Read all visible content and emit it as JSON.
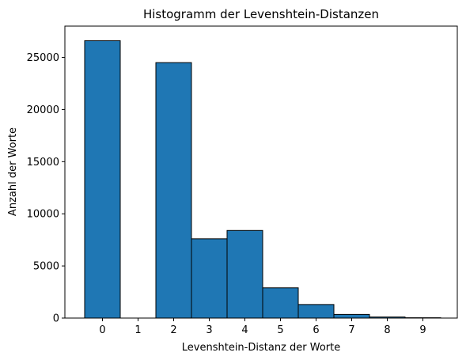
{
  "chart_data": {
    "type": "bar",
    "title": "Histogramm der Levenshtein-Distanzen",
    "xlabel": "Levenshtein-Distanz der Worte",
    "ylabel": "Anzahl der Worte",
    "categories": [
      "0",
      "1",
      "2",
      "3",
      "4",
      "5",
      "6",
      "7",
      "8",
      "9"
    ],
    "values": [
      26600,
      0,
      24500,
      7600,
      8400,
      2900,
      1300,
      350,
      100,
      30
    ],
    "x_ticks": [
      "0",
      "1",
      "2",
      "3",
      "4",
      "5",
      "6",
      "7",
      "8",
      "9"
    ],
    "y_ticks": [
      "0",
      "5000",
      "10000",
      "15000",
      "20000",
      "25000"
    ],
    "ylim": [
      0,
      28000
    ],
    "grid": false,
    "bar_color": "#1f77b4",
    "edge_color": "#000000"
  }
}
